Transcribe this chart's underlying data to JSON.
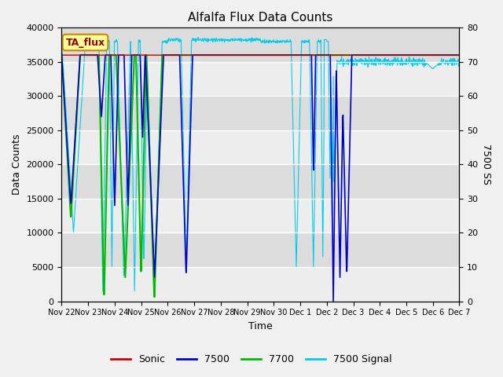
{
  "title": "Alfalfa Flux Data Counts",
  "xlabel": "Time",
  "ylabel_left": "Data Counts",
  "ylabel_right": "7500 SS",
  "ylim_left": [
    0,
    40000
  ],
  "ylim_right": [
    0,
    80
  ],
  "bg_color": "#dcdcdc",
  "fig_color": "#f0f0f0",
  "annotation_text": "TA_flux",
  "annotation_box_color": "#ffff99",
  "annotation_border_color": "#cc8800",
  "annotation_text_color": "#990000",
  "legend_entries": [
    "Sonic",
    "7500",
    "7700",
    "7500 Signal"
  ],
  "legend_colors": [
    "#cc0000",
    "#0000cc",
    "#00bb00",
    "#00ccee"
  ],
  "series_colors": {
    "sonic": "#cc0000",
    "s7500": "#0000cc",
    "s7700": "#00bb00",
    "signal": "#00ccee"
  },
  "xtick_labels": [
    "Nov 22",
    "Nov 23",
    "Nov 24",
    "Nov 25",
    "Nov 26",
    "Nov 27",
    "Nov 28",
    "Nov 29",
    "Nov 30",
    "Dec 1",
    "Dec 2",
    "Dec 3",
    "Dec 4",
    "Dec 5",
    "Dec 6",
    "Dec 7"
  ],
  "xtick_positions": [
    0,
    1,
    2,
    3,
    4,
    5,
    6,
    7,
    8,
    9,
    10,
    11,
    12,
    13,
    14,
    15
  ],
  "yticks_left": [
    0,
    5000,
    10000,
    15000,
    20000,
    25000,
    30000,
    35000,
    40000
  ],
  "yticks_right": [
    0,
    10,
    20,
    30,
    40,
    50,
    60,
    70,
    80
  ]
}
